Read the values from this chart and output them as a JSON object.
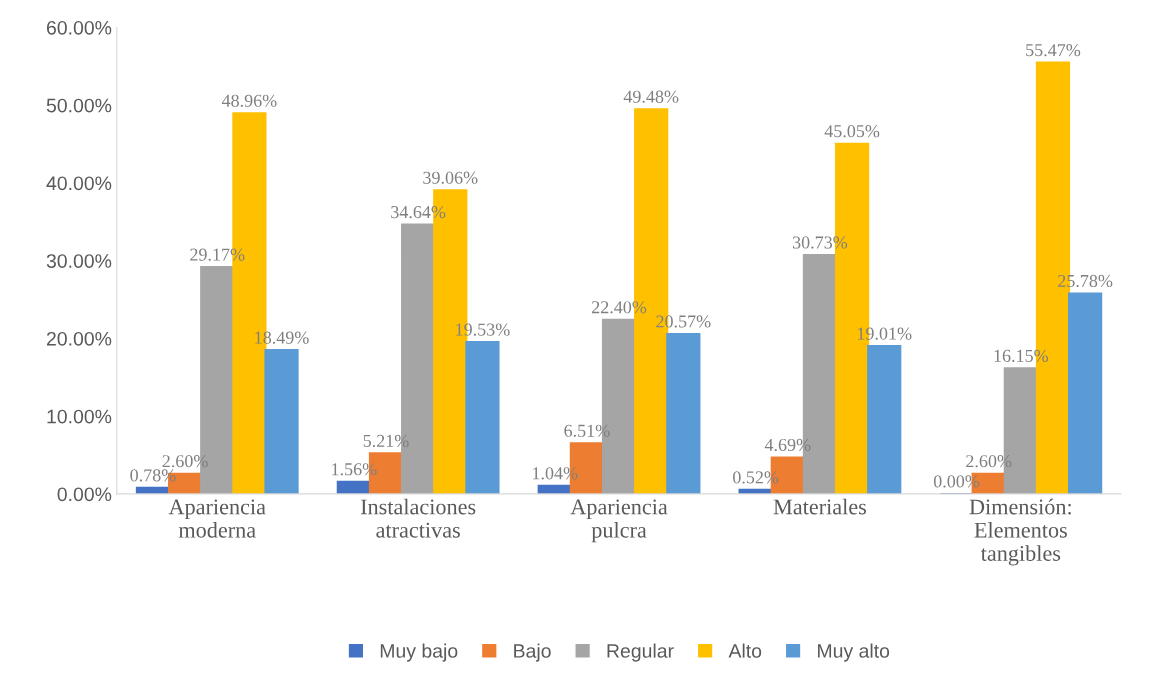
{
  "chart_data": {
    "type": "bar",
    "categories": [
      "Apariencia moderna",
      "Instalaciones atractivas",
      "Apariencia pulcra",
      "Materiales",
      "Dimensión: Elementos tangibles"
    ],
    "series": [
      {
        "name": "Muy bajo",
        "color": "#4472c4",
        "values": [
          0.78,
          1.56,
          1.04,
          0.52,
          0.0
        ],
        "value_labels": [
          "0.78%",
          "1.56%",
          "1.04%",
          "0.52%",
          "0.00%"
        ]
      },
      {
        "name": "Bajo",
        "color": "#ed7d31",
        "values": [
          2.6,
          5.21,
          6.51,
          4.69,
          2.6
        ],
        "value_labels": [
          "2.60%",
          "5.21%",
          "6.51%",
          "4.69%",
          "2.60%"
        ]
      },
      {
        "name": "Regular",
        "color": "#a5a5a5",
        "values": [
          29.17,
          34.64,
          22.4,
          30.73,
          16.15
        ],
        "value_labels": [
          "29.17%",
          "34.64%",
          "22.40%",
          "30.73%",
          "16.15%"
        ]
      },
      {
        "name": "Alto",
        "color": "#ffc000",
        "values": [
          48.96,
          39.06,
          49.48,
          45.05,
          55.47
        ],
        "value_labels": [
          "48.96%",
          "39.06%",
          "49.48%",
          "45.05%",
          "55.47%"
        ]
      },
      {
        "name": "Muy alto",
        "color": "#5b9bd5",
        "values": [
          18.49,
          19.53,
          20.57,
          19.01,
          25.78
        ],
        "value_labels": [
          "18.49%",
          "19.53%",
          "20.57%",
          "19.01%",
          "25.78%"
        ]
      }
    ],
    "ylim": [
      0,
      60
    ],
    "yticks": [
      {
        "value": 0,
        "label": "0.00%"
      },
      {
        "value": 10,
        "label": "10.00%"
      },
      {
        "value": 20,
        "label": "20.00%"
      },
      {
        "value": 30,
        "label": "30.00%"
      },
      {
        "value": 40,
        "label": "40.00%"
      },
      {
        "value": 50,
        "label": "50.00%"
      },
      {
        "value": 60,
        "label": "60.00%"
      }
    ],
    "grid": false,
    "legend": "bottom"
  }
}
